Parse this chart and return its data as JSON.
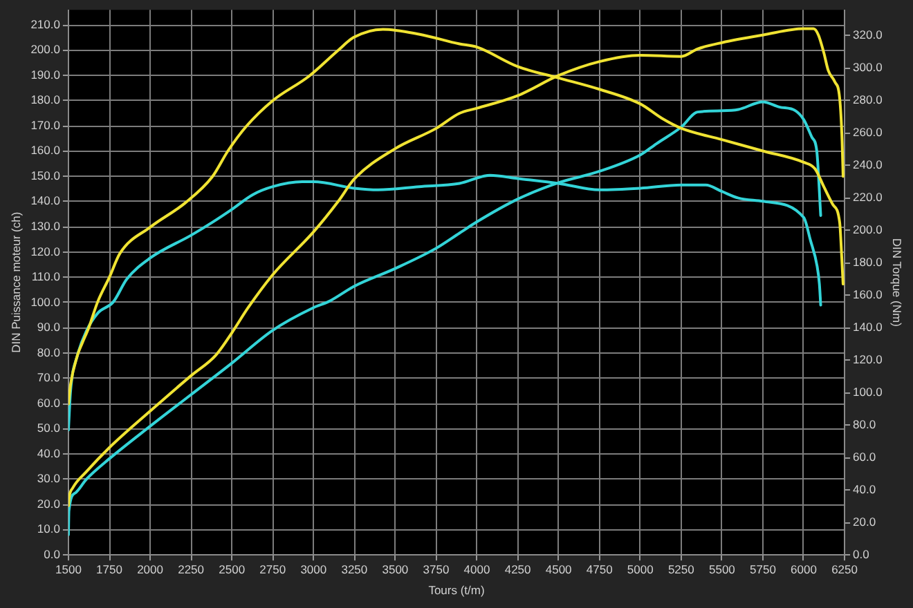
{
  "chart_data": {
    "type": "line",
    "xlabel": "Tours (t/m)",
    "ylabel": "DIN Puissance moteur (ch)",
    "y2label": "DIN Torque (Nm)",
    "xlim": [
      1500,
      6250
    ],
    "xticks": [
      1500,
      1750,
      2000,
      2250,
      2500,
      2750,
      3000,
      3250,
      3500,
      3750,
      4000,
      4250,
      4500,
      4750,
      5000,
      5250,
      5500,
      5750,
      6000,
      6250
    ],
    "ylim": [
      0,
      216
    ],
    "yticks": [
      {
        "value": 0,
        "label": "0.0"
      },
      {
        "value": 10,
        "label": "10.0"
      },
      {
        "value": 20,
        "label": "20.0"
      },
      {
        "value": 30,
        "label": "30.0"
      },
      {
        "value": 40,
        "label": "40.0"
      },
      {
        "value": 50,
        "label": "50.0"
      },
      {
        "value": 60,
        "label": "60.0"
      },
      {
        "value": 70,
        "label": "70.0"
      },
      {
        "value": 80,
        "label": "80.0"
      },
      {
        "value": 90,
        "label": "90.0"
      },
      {
        "value": 100,
        "label": "100.0"
      },
      {
        "value": 110,
        "label": "110.0"
      },
      {
        "value": 120,
        "label": "120.0"
      },
      {
        "value": 130,
        "label": "130.0"
      },
      {
        "value": 140,
        "label": "140.0"
      },
      {
        "value": 150,
        "label": "150.0"
      },
      {
        "value": 160,
        "label": "160.0"
      },
      {
        "value": 170,
        "label": "170.0"
      },
      {
        "value": 180,
        "label": "180.0"
      },
      {
        "value": 190,
        "label": "190.0"
      },
      {
        "value": 200,
        "label": "200.0"
      },
      {
        "value": 210,
        "label": "210.0"
      }
    ],
    "y2lim": [
      0,
      336
    ],
    "y2ticks": [
      {
        "value": 0,
        "label": "0.0"
      },
      {
        "value": 20,
        "label": "20.0"
      },
      {
        "value": 40,
        "label": "40.0"
      },
      {
        "value": 60,
        "label": "60.0"
      },
      {
        "value": 80,
        "label": "80.0"
      },
      {
        "value": 100,
        "label": "100.0"
      },
      {
        "value": 120,
        "label": "120.0"
      },
      {
        "value": 140,
        "label": "140.0"
      },
      {
        "value": 160,
        "label": "160.0"
      },
      {
        "value": 180,
        "label": "180.0"
      },
      {
        "value": 200,
        "label": "200.0"
      },
      {
        "value": 220,
        "label": "220.0"
      },
      {
        "value": 240,
        "label": "240.0"
      },
      {
        "value": 260,
        "label": "260.0"
      },
      {
        "value": 280,
        "label": "280.0"
      },
      {
        "value": 300,
        "label": "300.0"
      },
      {
        "value": 320,
        "label": "320.0"
      }
    ],
    "grid": true,
    "marker": "none",
    "line_style": "solid",
    "series": [
      {
        "color": "#f0e332",
        "axis": "y2",
        "x": [
          1500,
          1513,
          1555,
          1582,
          1624,
          1679,
          1750,
          1816,
          2000,
          2215,
          2380,
          2476,
          2587,
          2750,
          2971,
          3150,
          3246,
          3425,
          3645,
          3893,
          4000,
          4250,
          4500,
          4750,
          5000,
          5134,
          5250,
          5500,
          5750,
          6000,
          6069,
          6123,
          6178,
          6220,
          6233,
          6241
        ],
        "values": [
          93,
          105,
          123,
          130,
          140,
          156,
          171,
          186,
          202,
          217,
          233,
          249,
          264,
          280,
          295,
          311,
          319,
          324,
          321,
          315,
          313,
          301,
          294,
          287,
          278,
          269,
          263,
          256,
          249,
          242,
          238,
          227,
          216,
          205,
          183,
          167
        ]
      },
      {
        "color": "#f0e332",
        "axis": "y",
        "x": [
          1500,
          1505,
          1526,
          1610,
          1750,
          2000,
          2250,
          2400,
          2500,
          2600,
          2750,
          3000,
          3150,
          3250,
          3500,
          3750,
          3893,
          4000,
          4250,
          4500,
          4750,
          5000,
          5250,
          5350,
          5500,
          5750,
          6000,
          6060,
          6090,
          6123,
          6150,
          6190,
          6220,
          6235,
          6241
        ],
        "values": [
          19.5,
          23,
          26.5,
          33,
          42.5,
          57,
          71,
          79,
          88,
          98,
          111,
          128,
          140,
          149,
          161,
          169,
          175,
          177,
          182,
          190,
          195.5,
          198,
          197.5,
          200.5,
          203,
          206,
          208.5,
          208.5,
          206,
          199,
          192,
          187.5,
          181,
          164,
          150
        ]
      },
      {
        "color": "#33d4d8",
        "axis": "y2",
        "x": [
          1500,
          1513,
          1555,
          1610,
          1679,
          1775,
          1857,
          2000,
          2250,
          2380,
          2500,
          2627,
          2750,
          2931,
          3000,
          3250,
          3396,
          3645,
          3893,
          4080,
          4250,
          4500,
          4750,
          5000,
          5250,
          5400,
          5500,
          5600,
          5750,
          6000,
          6041,
          6082,
          6096,
          6104
        ],
        "values": [
          77,
          101,
          123,
          138,
          149,
          156,
          170,
          183,
          197,
          205,
          213,
          222,
          227,
          230,
          230,
          226,
          225,
          227,
          229,
          234,
          232,
          229,
          225,
          226,
          228,
          228,
          224,
          220,
          218,
          208,
          194,
          178,
          167,
          154
        ]
      },
      {
        "color": "#33d4d8",
        "axis": "y",
        "x": [
          1500,
          1503,
          1541,
          1610,
          1748,
          2000,
          2250,
          2500,
          2750,
          3000,
          3096,
          3250,
          3500,
          3750,
          3893,
          4000,
          4250,
          4500,
          4750,
          5000,
          5100,
          5250,
          5350,
          5500,
          5600,
          5750,
          5850,
          5950,
          6000,
          6050,
          6080,
          6104
        ],
        "values": [
          8,
          17.5,
          24.5,
          30,
          38,
          51,
          63.5,
          76,
          89,
          98,
          100.5,
          106.5,
          113.5,
          121.5,
          127.5,
          132,
          141,
          147.5,
          152,
          158.5,
          163,
          169.5,
          175.5,
          176,
          176.5,
          179.5,
          177.5,
          176,
          172.5,
          165.5,
          160,
          134.5
        ]
      }
    ]
  }
}
